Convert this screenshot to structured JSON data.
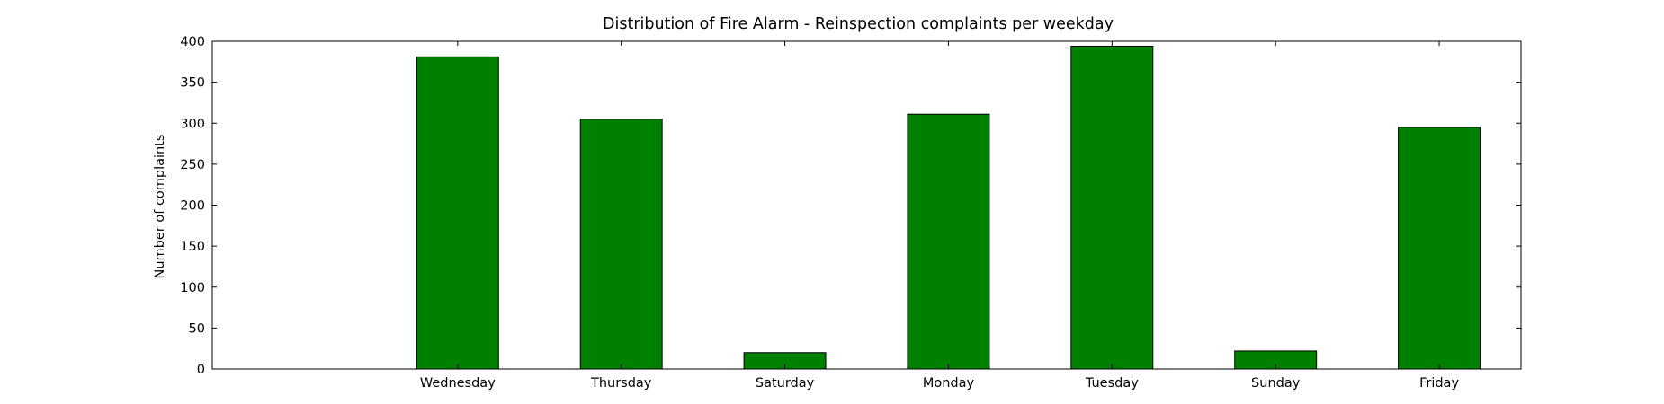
{
  "chart_data": {
    "type": "bar",
    "title": "Distribution of  Fire Alarm - Reinspection complaints per weekday",
    "xlabel": "",
    "ylabel": "Number of complaints",
    "categories": [
      "Wednesday",
      "Thursday",
      "Saturday",
      "Monday",
      "Tuesday",
      "Sunday",
      "Friday"
    ],
    "values": [
      381,
      305,
      20,
      311,
      394,
      22,
      295
    ],
    "ylim": [
      0,
      400
    ],
    "yticks": [
      0,
      50,
      100,
      150,
      200,
      250,
      300,
      350,
      400
    ],
    "xlim": [
      -1.5,
      6.5
    ],
    "bar_width": 0.5,
    "bar_color": "#008000",
    "edge_color": "#000000",
    "grid": false,
    "legend": "none"
  }
}
